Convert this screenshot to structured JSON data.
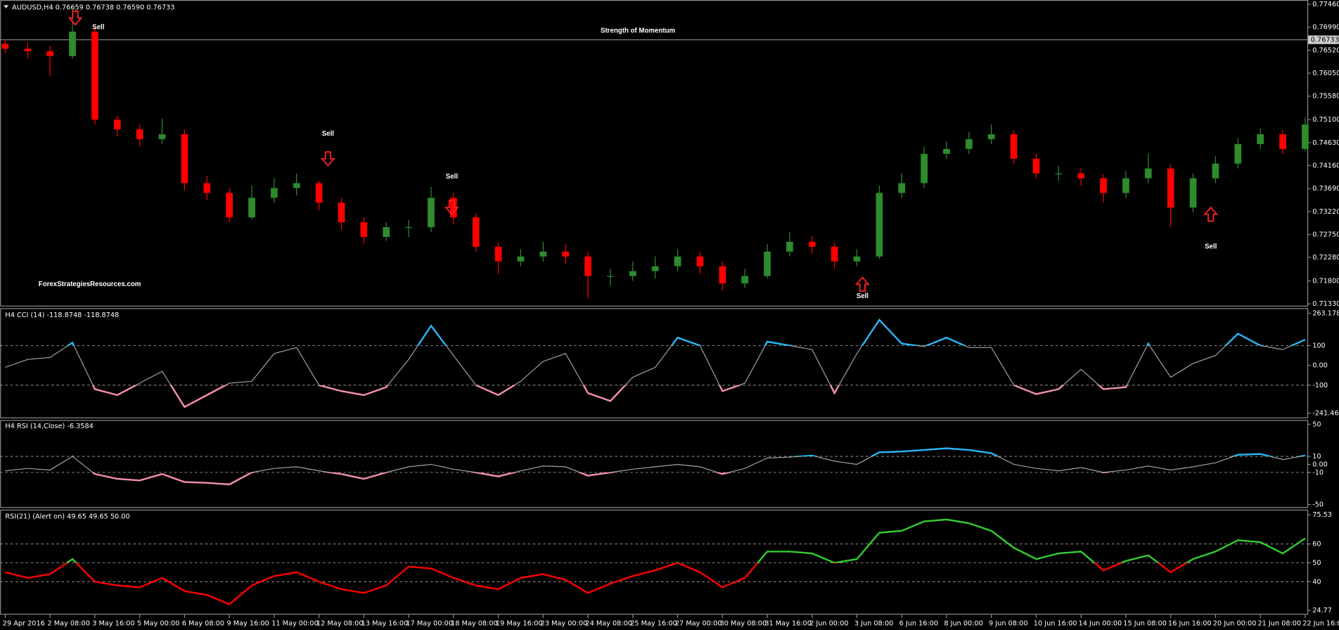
{
  "chart_data": [
    {
      "type": "candlestick",
      "header": "AUDUSD,H4  0.76659 0.76738 0.76590 0.76733",
      "title": "Strength of Momentum",
      "watermark": "ForexStrategiesResources.com",
      "annotations": [
        "Sell",
        "Sell",
        "Sell",
        "Sell",
        "Sell"
      ],
      "categories": [
        "29 Apr 2016",
        null,
        "2 May 08:00",
        null,
        "3 May 16:00",
        null,
        "5 May 00:00",
        null,
        "6 May 08:00",
        null,
        "9 May 16:00",
        null,
        "11 May 00:00",
        null,
        "12 May 08:00",
        null,
        "13 May 16:00",
        null,
        "17 May 00:00",
        null,
        "18 May 08:00",
        null,
        "19 May 16:00",
        null,
        "23 May 00:00",
        null,
        "24 May 08:00",
        null,
        "25 May 16:00",
        null,
        "27 May 00:00",
        null,
        "30 May 08:00",
        null,
        "31 May 16:00",
        null,
        "2 Jun 00:00",
        null,
        "3 Jun 08:00",
        null,
        "6 Jun 16:00",
        null,
        "8 Jun 00:00",
        null,
        "9 Jun 08:00",
        null,
        "10 Jun 16:00",
        null,
        "14 Jun 00:00",
        null,
        "15 Jun 08:00",
        null,
        "16 Jun 16:00",
        null,
        "20 Jun 00:00",
        null,
        "21 Jun 08:00",
        null,
        "22 Jun 16:00"
      ],
      "open": [
        0.7665,
        0.7655,
        0.765,
        0.764,
        0.769,
        0.751,
        0.749,
        0.747,
        0.748,
        0.738,
        0.736,
        0.731,
        0.735,
        0.737,
        0.738,
        0.734,
        0.73,
        0.727,
        0.729,
        0.729,
        0.735,
        0.731,
        0.725,
        0.722,
        0.723,
        0.724,
        0.723,
        0.719,
        0.719,
        0.72,
        0.721,
        0.723,
        0.721,
        0.7175,
        0.719,
        0.724,
        0.726,
        0.725,
        0.722,
        0.723,
        0.736,
        0.738,
        0.744,
        0.745,
        0.747,
        0.748,
        0.743,
        0.74,
        0.74,
        0.739,
        0.736,
        0.739,
        0.741,
        0.733,
        0.739,
        0.742,
        0.746,
        0.748,
        0.745
      ],
      "high": [
        0.7675,
        0.7668,
        0.766,
        0.7746,
        0.77,
        0.7518,
        0.75,
        0.7512,
        0.749,
        0.7395,
        0.737,
        0.7375,
        0.739,
        0.74,
        0.7385,
        0.735,
        0.731,
        0.73,
        0.7305,
        0.7372,
        0.736,
        0.7318,
        0.7258,
        0.7245,
        0.726,
        0.7255,
        0.724,
        0.7205,
        0.722,
        0.723,
        0.7245,
        0.724,
        0.722,
        0.7205,
        0.7255,
        0.728,
        0.7272,
        0.7258,
        0.7245,
        0.7375,
        0.74,
        0.7455,
        0.7465,
        0.7485,
        0.75,
        0.7488,
        0.744,
        0.7415,
        0.741,
        0.7398,
        0.7405,
        0.744,
        0.7418,
        0.74,
        0.7435,
        0.7472,
        0.7492,
        0.7488,
        0.7515
      ],
      "low": [
        0.7645,
        0.7635,
        0.76,
        0.7635,
        0.75,
        0.7475,
        0.7455,
        0.746,
        0.7365,
        0.7345,
        0.73,
        0.7305,
        0.734,
        0.7355,
        0.7325,
        0.7285,
        0.7255,
        0.7262,
        0.727,
        0.728,
        0.7295,
        0.724,
        0.7195,
        0.721,
        0.722,
        0.7215,
        0.7145,
        0.717,
        0.718,
        0.7185,
        0.72,
        0.7195,
        0.716,
        0.7165,
        0.7185,
        0.723,
        0.7235,
        0.7205,
        0.721,
        0.7225,
        0.735,
        0.737,
        0.743,
        0.744,
        0.746,
        0.742,
        0.739,
        0.7385,
        0.7375,
        0.734,
        0.735,
        0.738,
        0.729,
        0.732,
        0.738,
        0.741,
        0.745,
        0.744,
        0.7445
      ],
      "close": [
        0.7655,
        0.765,
        0.764,
        0.769,
        0.751,
        0.749,
        0.747,
        0.748,
        0.738,
        0.736,
        0.731,
        0.735,
        0.737,
        0.738,
        0.734,
        0.73,
        0.727,
        0.729,
        0.729,
        0.735,
        0.731,
        0.725,
        0.722,
        0.723,
        0.724,
        0.723,
        0.719,
        0.719,
        0.72,
        0.721,
        0.723,
        0.721,
        0.7175,
        0.719,
        0.724,
        0.726,
        0.725,
        0.722,
        0.723,
        0.736,
        0.738,
        0.744,
        0.745,
        0.747,
        0.748,
        0.743,
        0.74,
        0.74,
        0.739,
        0.736,
        0.739,
        0.741,
        0.733,
        0.739,
        0.742,
        0.746,
        0.748,
        0.745,
        0.75
      ],
      "up_color": "#2e8b2e",
      "down_color": "#ff0000",
      "last_price": 0.76733,
      "ylim": [
        0.71295,
        0.77547
      ],
      "yticks": [
        {
          "value": 0.7746,
          "label": "0.77460"
        },
        {
          "value": 0.7699,
          "label": "0.76990"
        },
        {
          "value": 0.7652,
          "label": "0.76520"
        },
        {
          "value": 0.7605,
          "label": "0.76050"
        },
        {
          "value": 0.7558,
          "label": "0.75580"
        },
        {
          "value": 0.751,
          "label": "0.75100"
        },
        {
          "value": 0.7463,
          "label": "0.74630"
        },
        {
          "value": 0.7416,
          "label": "0.74160"
        },
        {
          "value": 0.7369,
          "label": "0.73690"
        },
        {
          "value": 0.7322,
          "label": "0.73220"
        },
        {
          "value": 0.7275,
          "label": "0.72750"
        },
        {
          "value": 0.7228,
          "label": "0.72280"
        },
        {
          "value": 0.718,
          "label": "0.71800"
        },
        {
          "value": 0.7133,
          "label": "0.71330"
        }
      ]
    },
    {
      "type": "line",
      "title": "H4 CCI (14) -118.8748 -118.8748",
      "values": [
        -10,
        30,
        40,
        115,
        -120,
        -150,
        -90,
        -30,
        -210,
        -150,
        -90,
        -80,
        60,
        90,
        -100,
        -130,
        -150,
        -110,
        30,
        200,
        50,
        -100,
        -150,
        -80,
        20,
        60,
        -140,
        -180,
        -60,
        -10,
        140,
        100,
        -130,
        -90,
        120,
        100,
        80,
        -140,
        60,
        230,
        110,
        95,
        140,
        90,
        90,
        -100,
        -145,
        -120,
        -20,
        -120,
        -110,
        110,
        -60,
        10,
        50,
        160,
        100,
        80,
        130
      ],
      "color": "#a0a0a0",
      "up_color": "#29b6f6",
      "down_color": "#f48fb1",
      "ylim": [
        -241.4683,
        263.1782
      ],
      "yticks": [
        263.1782,
        100,
        {
          "value": 0,
          "label": "0.00"
        },
        -100,
        -241.4683
      ]
    },
    {
      "type": "line",
      "title": "H4 RSI (14,Close) -6.3584",
      "values": [
        -8,
        -5,
        -7,
        10,
        -12,
        -18,
        -20,
        -12,
        -22,
        -23,
        -25,
        -10,
        -5,
        -3,
        -8,
        -12,
        -18,
        -10,
        -3,
        0,
        -6,
        -10,
        -15,
        -8,
        -2,
        -3,
        -14,
        -10,
        -6,
        -3,
        0,
        -3,
        -12,
        -5,
        8,
        9,
        11,
        4,
        0,
        15,
        16,
        18,
        20,
        18,
        14,
        0,
        -5,
        -8,
        -4,
        -10,
        -7,
        -2,
        -7,
        -3,
        2,
        12,
        13,
        6,
        11
      ],
      "color": "#a0a0a0",
      "up_color": "#29b6f6",
      "down_color": "#f48fb1",
      "ylim": [
        -50,
        50
      ],
      "yticks": [
        50,
        10,
        {
          "value": 0,
          "label": "0.00"
        },
        -10,
        -50
      ]
    },
    {
      "type": "line",
      "title": "RSI(21) (Alert on) 49.65 49.65 50.00",
      "values": [
        45,
        42,
        44,
        52,
        40,
        38,
        37,
        42,
        35,
        33,
        28,
        38,
        43,
        45,
        40,
        36,
        34,
        38,
        48,
        47,
        42,
        38,
        36,
        42,
        44,
        41,
        34,
        39,
        43,
        46,
        50,
        45,
        37,
        42,
        56,
        56,
        55,
        50,
        52,
        66,
        67,
        72,
        73,
        71,
        67,
        58,
        52,
        55,
        56,
        46,
        51,
        54,
        45,
        52,
        56,
        62,
        61,
        55,
        63
      ],
      "up_color": "#32cd32",
      "down_color": "#ff0000",
      "ylim": [
        24.77,
        75.53
      ],
      "yticks": [
        75.53,
        60,
        50,
        40,
        24.77
      ]
    }
  ]
}
